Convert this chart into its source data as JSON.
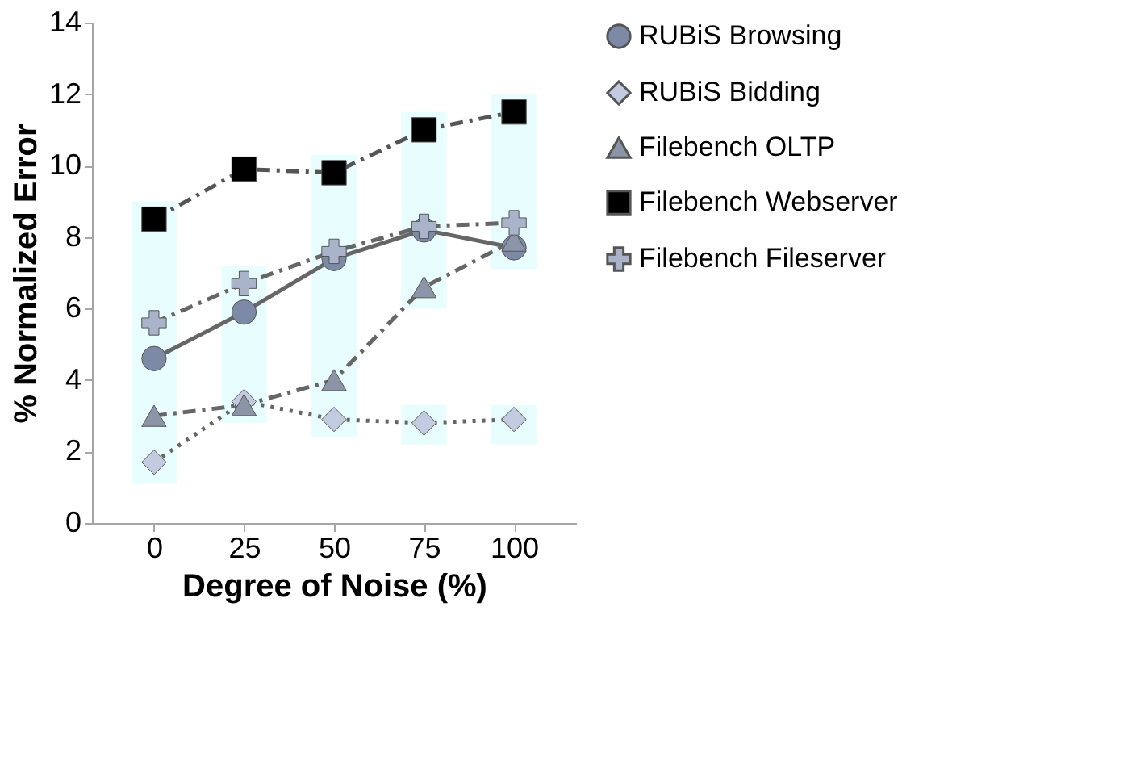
{
  "chart_data": {
    "type": "line",
    "xlabel": "Degree of Noise (%)",
    "ylabel": "% Normalized Error",
    "categories": [
      "0",
      "25",
      "50",
      "75",
      "100"
    ],
    "series": [
      {
        "type": "bar",
        "color": "#e8fdfd",
        "base": [
          1.1,
          2.8,
          2.4,
          6.0,
          7.1
        ],
        "values": [
          7.9,
          4.4,
          7.9,
          5.5,
          4.9
        ]
      },
      {
        "type": "bar",
        "color": "#e8fdfd",
        "base": [
          null,
          null,
          null,
          2.2,
          2.2
        ],
        "values": [
          null,
          null,
          null,
          1.1,
          1.1
        ]
      },
      {
        "name": "RUBiS Browsing",
        "color": "#7d8aa6",
        "marker": "circle",
        "line_style": "solid",
        "values": [
          4.6,
          5.9,
          7.4,
          8.2,
          7.7
        ]
      },
      {
        "name": "RUBiS Bidding",
        "color": "#c3cbe0",
        "marker": "diamond",
        "line_style": "dotted",
        "values": [
          1.7,
          3.4,
          2.9,
          2.8,
          2.9
        ]
      },
      {
        "name": "Filebench OLTP",
        "color": "#8c95a8",
        "marker": "triangle",
        "line_style": "dashed",
        "values": [
          3.0,
          3.3,
          4.0,
          6.6,
          7.9
        ]
      },
      {
        "name": "Filebench Webserver",
        "color": "#000000",
        "marker": "square",
        "line_style": "dashed",
        "values": [
          8.5,
          9.9,
          9.8,
          11.0,
          11.5
        ]
      },
      {
        "name": "Filebench Fileserver",
        "color": "#a9b3c9",
        "marker": "cross",
        "line_style": "dashed",
        "values": [
          5.6,
          6.7,
          7.6,
          8.3,
          8.4
        ]
      }
    ],
    "ylim": [
      0,
      14
    ],
    "yticks": [
      0,
      2,
      4,
      6,
      8,
      10,
      12,
      14
    ],
    "grid": false,
    "legend": "right"
  }
}
